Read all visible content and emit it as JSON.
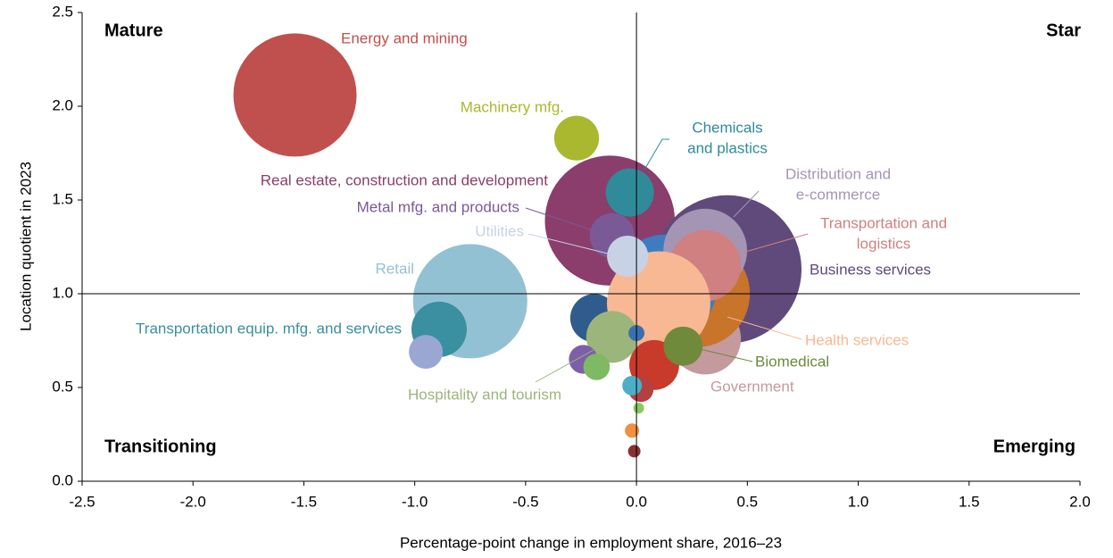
{
  "chart_data": {
    "type": "scatter",
    "x_label": "Percentage-point change in employment share, 2016–23",
    "y_label": "Location quotient in 2023",
    "quadrant_labels": {
      "top_left": "Mature",
      "top_right": "Star",
      "bottom_left": "Transitioning",
      "bottom_right": "Emerging"
    },
    "xlim": [
      -2.5,
      2.0
    ],
    "ylim": [
      0,
      2.5
    ],
    "xticks": [
      {
        "value": -2.5,
        "label": "-2.5"
      },
      {
        "value": -2.0,
        "label": "-2.0"
      },
      {
        "value": -1.5,
        "label": "-1.5"
      },
      {
        "value": -1.0,
        "label": "-1.0"
      },
      {
        "value": -0.5,
        "label": "-0.5"
      },
      {
        "value": 0,
        "label": "0.0"
      },
      {
        "value": 0.5,
        "label": "0.5"
      },
      {
        "value": 1.0,
        "label": "1.0"
      },
      {
        "value": 1.5,
        "label": "1.5"
      },
      {
        "value": 2.0,
        "label": "2.0"
      }
    ],
    "yticks": [
      {
        "value": 0,
        "label": "0.0"
      },
      {
        "value": 0.5,
        "label": "0.5"
      },
      {
        "value": 1.0,
        "label": "1.0"
      },
      {
        "value": 1.5,
        "label": "1.5"
      },
      {
        "value": 2.0,
        "label": "2.0"
      },
      {
        "value": 2.5,
        "label": "2.5"
      }
    ],
    "points": [
      {
        "label": "Energy and mining",
        "x": -1.54,
        "y": 2.06,
        "size": 47.6,
        "color": "#c0504d"
      },
      {
        "label": "Retail",
        "x": -0.75,
        "y": 0.96,
        "size": 41,
        "color": "#93c1d4"
      },
      {
        "label": "Transportation equip. mfg. and services",
        "x": -0.89,
        "y": 0.81,
        "size": 9.6,
        "color": "#3a8fa0"
      },
      {
        "label": null,
        "x": -0.95,
        "y": 0.69,
        "size": 3.6,
        "color": "#9aa7d3"
      },
      {
        "label": "Real estate, construction and development",
        "x": -0.12,
        "y": 1.39,
        "size": 53,
        "color": "#8b3d6b"
      },
      {
        "label": "Business services",
        "x": 0.41,
        "y": 1.13,
        "size": 69,
        "color": "#5f4a7b"
      },
      {
        "label": "Government",
        "x": 0.31,
        "y": 0.76,
        "size": 16,
        "color": "#c49a9f"
      },
      {
        "label": null,
        "x": 0.27,
        "y": 1.0,
        "size": 36,
        "color": "#c8742a"
      },
      {
        "label": null,
        "x": 0.13,
        "y": 1.04,
        "size": 33.6,
        "color": "#3d7cc0"
      },
      {
        "label": null,
        "x": -0.19,
        "y": 0.87,
        "size": 7.3,
        "color": "#2f5c8c"
      },
      {
        "label": [
          "Distribution and",
          "e-commerce"
        ],
        "x": 0.31,
        "y": 1.23,
        "size": 22,
        "color": "#a595b5"
      },
      {
        "label": [
          "Transportation and",
          "logistics"
        ],
        "x": 0.31,
        "y": 1.15,
        "size": 16,
        "color": "#d08080"
      },
      {
        "label": "Metal mfg. and products",
        "x": -0.11,
        "y": 1.31,
        "size": 6.3,
        "color": "#7a5a96"
      },
      {
        "label": [
          "Chemicals",
          "and plastics"
        ],
        "x": -0.03,
        "y": 1.54,
        "size": 7.3,
        "color": "#2f8b9a"
      },
      {
        "label": "Machinery mfg.",
        "x": -0.27,
        "y": 1.83,
        "size": 6.3,
        "color": "#a9b82e"
      },
      {
        "label": "Health services",
        "x": 0.1,
        "y": 0.95,
        "size": 33.6,
        "color": "#f8b893"
      },
      {
        "label": "Utilities",
        "x": -0.04,
        "y": 1.2,
        "size": 5.3,
        "color": "#c8d2e6"
      },
      {
        "label": null,
        "x": 0.08,
        "y": 0.62,
        "size": 7.8,
        "color": "#c83a2a"
      },
      {
        "label": "Hospitality and tourism",
        "x": -0.11,
        "y": 0.77,
        "size": 8.4,
        "color": "#9bb57b"
      },
      {
        "label": null,
        "x": -0.24,
        "y": 0.65,
        "size": 2.6,
        "color": "#7d5fa8"
      },
      {
        "label": null,
        "x": -0.18,
        "y": 0.61,
        "size": 2.2,
        "color": "#7dba63"
      },
      {
        "label": "Biomedical",
        "x": 0.21,
        "y": 0.72,
        "size": 4.8,
        "color": "#6e8a3a"
      },
      {
        "label": null,
        "x": 0.0,
        "y": 0.79,
        "size": 0.8,
        "color": "#3c6fb0"
      },
      {
        "label": null,
        "x": 0.02,
        "y": 0.49,
        "size": 2,
        "color": "#b54040"
      },
      {
        "label": null,
        "x": -0.02,
        "y": 0.51,
        "size": 1.2,
        "color": "#4bafc8"
      },
      {
        "label": null,
        "x": 0.01,
        "y": 0.39,
        "size": 0.36,
        "color": "#8cc860"
      },
      {
        "label": null,
        "x": -0.02,
        "y": 0.27,
        "size": 0.64,
        "color": "#f09040"
      },
      {
        "label": null,
        "x": -0.01,
        "y": 0.16,
        "size": 0.49,
        "color": "#8b3030"
      }
    ]
  }
}
